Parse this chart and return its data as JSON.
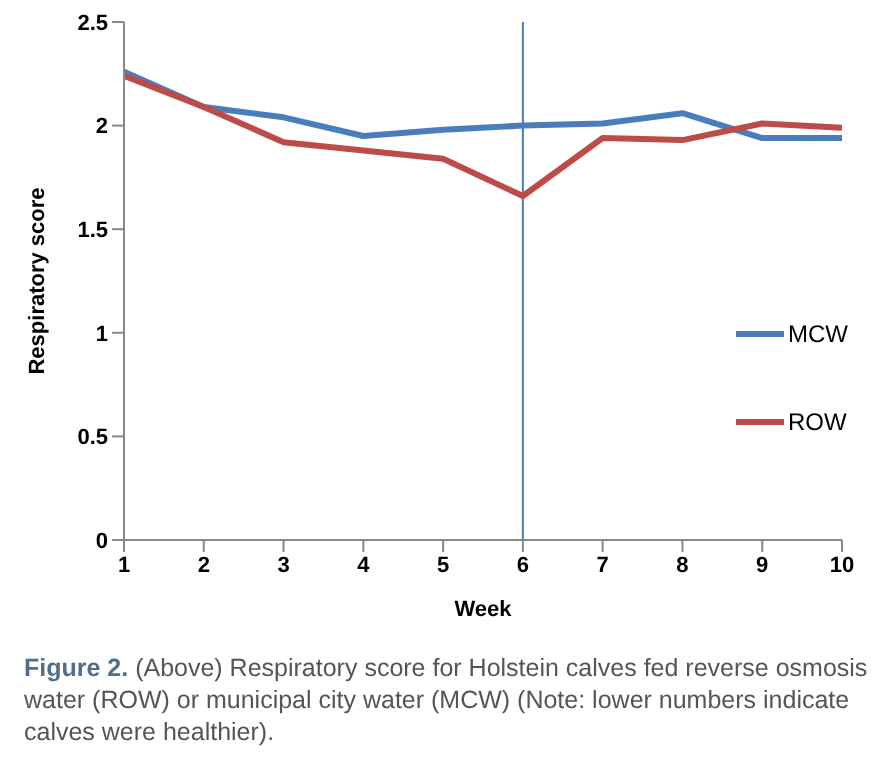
{
  "chart_data": {
    "type": "line",
    "xlabel": "Week",
    "ylabel": "Respiratory score",
    "x": [
      1,
      2,
      3,
      4,
      5,
      6,
      7,
      8,
      9,
      10
    ],
    "xlim": [
      1,
      10
    ],
    "xticks": [
      1,
      2,
      3,
      4,
      5,
      6,
      7,
      8,
      9,
      10
    ],
    "ylim": [
      0,
      2.5
    ],
    "yticks": [
      0,
      0.5,
      1,
      1.5,
      2,
      2.5
    ],
    "grid": false,
    "legend": "right",
    "marker": "none",
    "series": [
      {
        "name": "MCW",
        "color": "#4a7ebb",
        "values": [
          2.26,
          2.09,
          2.04,
          1.95,
          1.98,
          2.0,
          2.01,
          2.06,
          1.94,
          1.94
        ]
      },
      {
        "name": "ROW",
        "color": "#be4b48",
        "values": [
          2.24,
          2.09,
          1.92,
          1.88,
          1.84,
          1.66,
          1.94,
          1.93,
          2.01,
          1.99
        ]
      }
    ],
    "ref_lines": [
      {
        "axis": "x",
        "value": 6,
        "color": "#4a7ebb"
      }
    ],
    "annotations": [
      "Figure 2. (Above) Respiratory score for Holstein calves fed reverse osmosis water (ROW) or municipal city water (MCW) (Note: lower numbers indicate calves were healthier)."
    ]
  }
}
